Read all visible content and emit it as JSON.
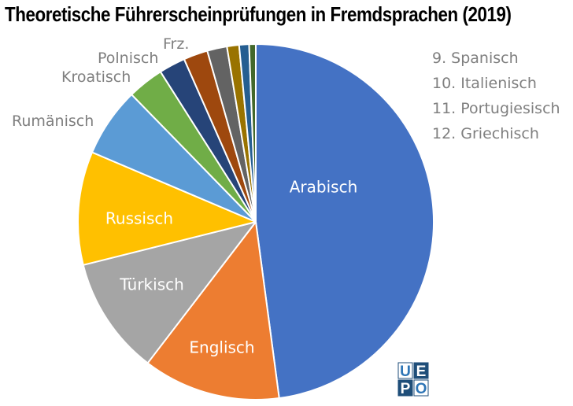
{
  "chart_data": {
    "type": "pie",
    "title": "Theoretische Führerscheinprüfungen in Fremdsprachen (2019)",
    "series": [
      {
        "name": "Arabisch",
        "value": 47.9,
        "color": "#4472c4",
        "label": "Arabisch",
        "label_style": "inside"
      },
      {
        "name": "Englisch",
        "value": 12.5,
        "color": "#ed7d31",
        "label": "Englisch",
        "label_style": "inside"
      },
      {
        "name": "Türkisch",
        "value": 10.7,
        "color": "#a5a5a5",
        "label": "Türkisch",
        "label_style": "inside"
      },
      {
        "name": "Russisch",
        "value": 10.3,
        "color": "#ffc000",
        "label": "Russisch",
        "label_style": "inside"
      },
      {
        "name": "Rumänisch",
        "value": 6.3,
        "color": "#5b9bd5",
        "label": "Rumänisch",
        "label_style": "outside"
      },
      {
        "name": "Kroatisch",
        "value": 3.3,
        "color": "#70ad47",
        "label": "Kroatisch",
        "label_style": "outside"
      },
      {
        "name": "Polnisch",
        "value": 2.4,
        "color": "#264478",
        "label": "Polnisch",
        "label_style": "outside"
      },
      {
        "name": "Frz.",
        "value": 2.2,
        "color": "#9e480e",
        "label": "Frz.",
        "label_style": "outside"
      },
      {
        "name": "Spanisch",
        "value": 1.8,
        "color": "#636363",
        "label": "9. Spanisch",
        "label_style": "legend"
      },
      {
        "name": "Italienisch",
        "value": 1.1,
        "color": "#997300",
        "label": "10. Italienisch",
        "label_style": "legend"
      },
      {
        "name": "Portugiesisch",
        "value": 0.9,
        "color": "#255e91",
        "label": "11. Portugiesisch",
        "label_style": "legend"
      },
      {
        "name": "Griechisch",
        "value": 0.6,
        "color": "#43682b",
        "label": "12. Griechisch",
        "label_style": "legend"
      }
    ],
    "legend_position": "top-right",
    "start_angle_deg": 0,
    "direction": "clockwise"
  },
  "logo": {
    "letters": [
      "U",
      "E",
      "P",
      "O"
    ],
    "colors": {
      "dark": "#1f4e79",
      "light": "#2e75b6"
    }
  }
}
